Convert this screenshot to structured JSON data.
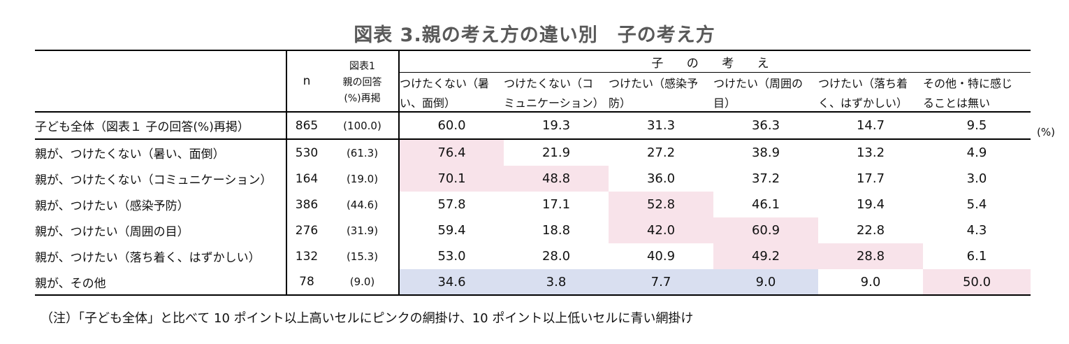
{
  "title": "図表 3.親の考え方の違い別　子の考え方",
  "header": {
    "n_label": "n",
    "ref_line1": "図表1",
    "ref_line2": "親の回答",
    "ref_line3": "(%)再掲",
    "group_label": "子 の 考 え",
    "columns": [
      {
        "line1": "つけたくない（暑",
        "line2": "い、面倒）"
      },
      {
        "line1": "つけたくない（コ",
        "line2": "ミュニケーション）"
      },
      {
        "line1": "つけたい（感染予",
        "line2": "防）"
      },
      {
        "line1": "つけたい（周囲の",
        "line2": "目）"
      },
      {
        "line1": "つけたい（落ち着",
        "line2": "く、はずかしい）"
      },
      {
        "line1": "その他・特に感じ",
        "line2": "ることは無い"
      }
    ]
  },
  "unit": "(%)",
  "total_row": {
    "label": "子ども全体（図表１ 子の回答(%)再掲）",
    "n": "865",
    "pct": "(100.0)",
    "values": [
      "60.0",
      "19.3",
      "31.3",
      "36.3",
      "14.7",
      "9.5"
    ]
  },
  "rows": [
    {
      "label": "親が、つけたくない（暑い、面倒）",
      "n": "530",
      "pct": "(61.3)",
      "values": [
        "76.4",
        "21.9",
        "27.2",
        "38.9",
        "13.2",
        "4.9"
      ],
      "shade": [
        "pink",
        "",
        "",
        "",
        "",
        ""
      ]
    },
    {
      "label": "親が、つけたくない（コミュニケーション）",
      "n": "164",
      "pct": "(19.0)",
      "values": [
        "70.1",
        "48.8",
        "36.0",
        "37.2",
        "17.7",
        "3.0"
      ],
      "shade": [
        "pink",
        "pink",
        "",
        "",
        "",
        ""
      ]
    },
    {
      "label": "親が、つけたい（感染予防）",
      "n": "386",
      "pct": "(44.6)",
      "values": [
        "57.8",
        "17.1",
        "52.8",
        "46.1",
        "19.4",
        "5.4"
      ],
      "shade": [
        "",
        "",
        "pink",
        "",
        "",
        ""
      ]
    },
    {
      "label": "親が、つけたい（周囲の目）",
      "n": "276",
      "pct": "(31.9)",
      "values": [
        "59.4",
        "18.8",
        "42.0",
        "60.9",
        "22.8",
        "4.3"
      ],
      "shade": [
        "",
        "",
        "pink",
        "pink",
        "",
        ""
      ]
    },
    {
      "label": "親が、つけたい（落ち着く、はずかしい）",
      "n": "132",
      "pct": "(15.3)",
      "values": [
        "53.0",
        "28.0",
        "40.9",
        "49.2",
        "28.8",
        "6.1"
      ],
      "shade": [
        "",
        "",
        "",
        "pink",
        "pink",
        ""
      ]
    },
    {
      "label": "親が、その他",
      "n": "78",
      "pct": "(9.0)",
      "values": [
        "34.6",
        "3.8",
        "7.7",
        "9.0",
        "9.0",
        "50.0"
      ],
      "shade": [
        "blue",
        "blue",
        "blue",
        "blue",
        "",
        "pink"
      ]
    }
  ],
  "note": "（注）「子ども全体」と比べて 10 ポイント以上高いセルにピンクの網掛け、10 ポイント以上低いセルに青い網掛け",
  "colors": {
    "pink": "#f8e3ea",
    "blue": "#d9dff0",
    "title": "#595959"
  }
}
